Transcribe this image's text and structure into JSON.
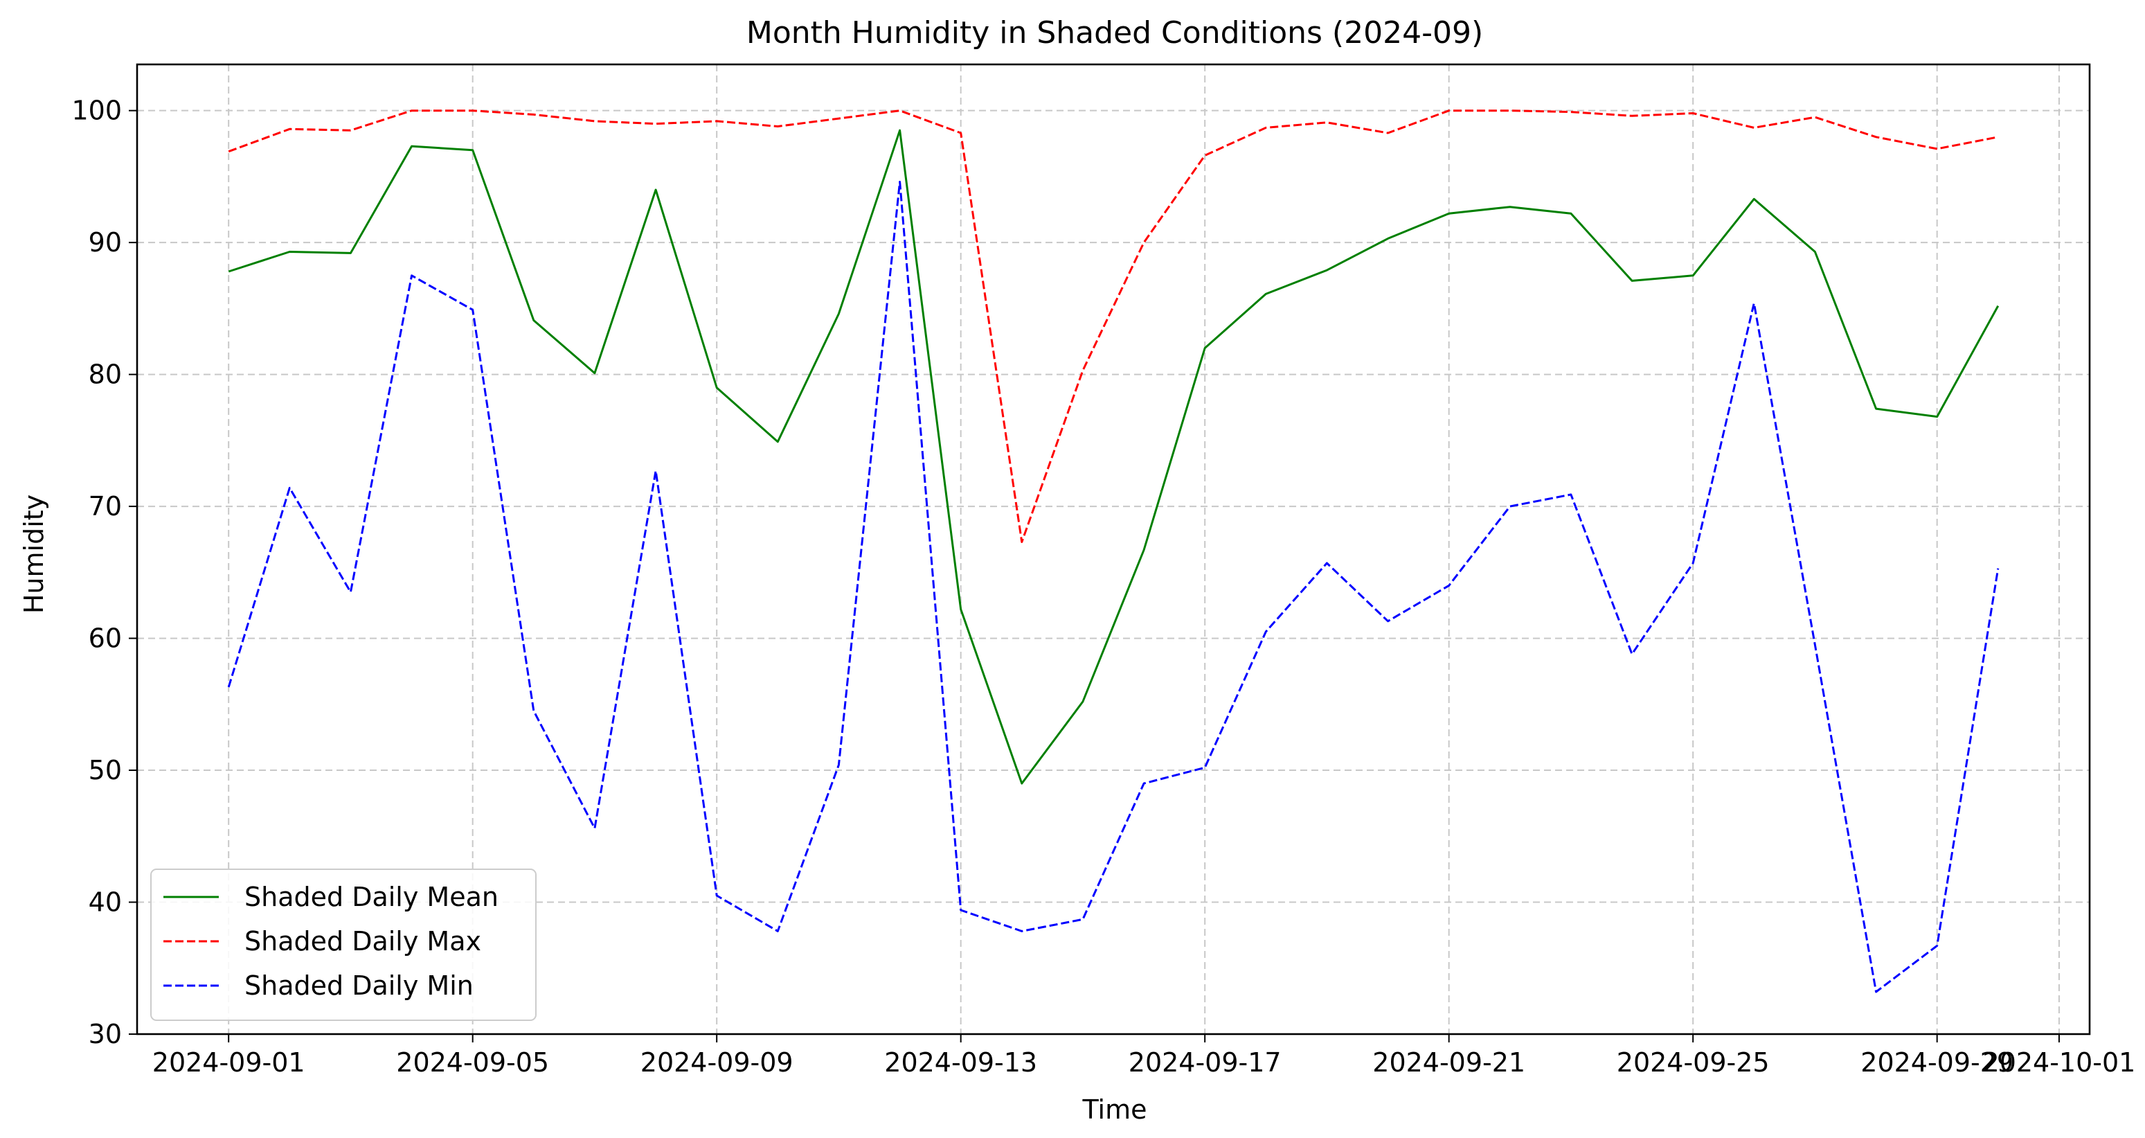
{
  "chart_data": {
    "type": "line",
    "title": "Month Humidity in Shaded Conditions (2024-09)",
    "xlabel": "Time",
    "ylabel": "Humidity",
    "x": [
      "2024-09-01",
      "2024-09-02",
      "2024-09-03",
      "2024-09-04",
      "2024-09-05",
      "2024-09-06",
      "2024-09-07",
      "2024-09-08",
      "2024-09-09",
      "2024-09-10",
      "2024-09-11",
      "2024-09-12",
      "2024-09-13",
      "2024-09-14",
      "2024-09-15",
      "2024-09-16",
      "2024-09-17",
      "2024-09-18",
      "2024-09-19",
      "2024-09-20",
      "2024-09-21",
      "2024-09-22",
      "2024-09-23",
      "2024-09-24",
      "2024-09-25",
      "2024-09-26",
      "2024-09-27",
      "2024-09-28",
      "2024-09-29",
      "2024-09-30"
    ],
    "xlim": [
      "2024-08-30T12:00",
      "2024-10-01T12:00"
    ],
    "x_ticks": [
      "2024-09-01",
      "2024-09-05",
      "2024-09-09",
      "2024-09-13",
      "2024-09-17",
      "2024-09-21",
      "2024-09-25",
      "2024-09-29",
      "2024-10-01"
    ],
    "ylim": [
      30,
      103.5
    ],
    "y_ticks": [
      30,
      40,
      50,
      60,
      70,
      80,
      90,
      100
    ],
    "grid": true,
    "legend_position": "lower-left",
    "series": [
      {
        "name": "Shaded Daily Mean",
        "color": "#008000",
        "dash": "solid",
        "values": [
          87.8,
          89.3,
          89.2,
          97.3,
          97.0,
          84.1,
          80.1,
          94.0,
          79.0,
          74.9,
          84.6,
          98.5,
          62.2,
          49.0,
          55.2,
          66.7,
          82.0,
          86.1,
          87.9,
          90.3,
          92.2,
          92.7,
          92.2,
          87.1,
          87.5,
          93.3,
          89.3,
          77.4,
          76.8,
          85.2
        ]
      },
      {
        "name": "Shaded Daily Max",
        "color": "#ff0000",
        "dash": "dashed",
        "values": [
          96.9,
          98.6,
          98.5,
          100.0,
          100.0,
          99.7,
          99.2,
          99.0,
          99.2,
          98.8,
          99.4,
          100.0,
          98.3,
          67.3,
          80.3,
          90.0,
          96.6,
          98.7,
          99.1,
          98.3,
          100.0,
          100.0,
          99.9,
          99.6,
          99.8,
          98.7,
          99.5,
          98.0,
          97.1,
          98.0
        ]
      },
      {
        "name": "Shaded Daily Min",
        "color": "#0000ff",
        "dash": "dashed",
        "values": [
          56.3,
          71.4,
          63.5,
          87.5,
          84.9,
          54.5,
          45.6,
          72.7,
          40.5,
          37.8,
          50.4,
          94.6,
          39.4,
          37.8,
          38.7,
          49.0,
          50.2,
          60.5,
          65.7,
          61.3,
          64.0,
          70.0,
          70.9,
          58.8,
          65.7,
          85.4,
          59.5,
          33.2,
          36.7,
          65.3
        ]
      }
    ]
  }
}
